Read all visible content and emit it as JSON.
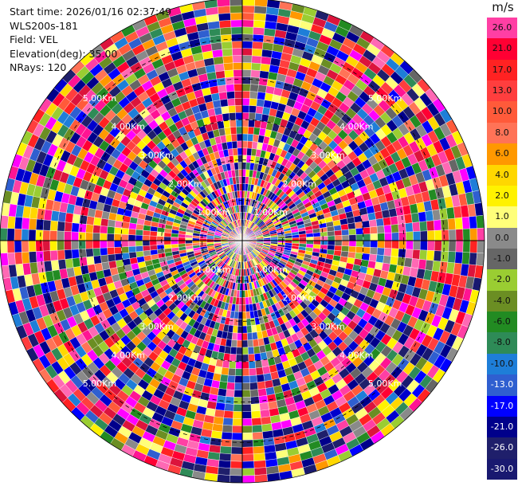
{
  "header": {
    "start_time": "Start time: 2026/01/16 02:37:49",
    "instrument": "WLS200s-181",
    "field": "Field: VEL",
    "elevation": "Elevation(deg): 35.00",
    "nrays": "NRays: 120"
  },
  "colorbar": {
    "unit": "m/s",
    "levels": [
      {
        "label": "26.0",
        "color": "#ff3fa4"
      },
      {
        "label": "21.0",
        "color": "#ff0033"
      },
      {
        "label": "17.0",
        "color": "#ff2222"
      },
      {
        "label": "13.0",
        "color": "#ff3e3e"
      },
      {
        "label": "10.0",
        "color": "#ff5a3a"
      },
      {
        "label": "8.0",
        "color": "#ff7357"
      },
      {
        "label": "6.0",
        "color": "#ff9800"
      },
      {
        "label": "4.0",
        "color": "#ffd700"
      },
      {
        "label": "2.0",
        "color": "#fff200"
      },
      {
        "label": "1.0",
        "color": "#ffff7a"
      },
      {
        "label": "0.0",
        "color": "#8a8a8a"
      },
      {
        "label": "-1.0",
        "color": "#666666"
      },
      {
        "label": "-2.0",
        "color": "#9acd32"
      },
      {
        "label": "-4.0",
        "color": "#6b8e23"
      },
      {
        "label": "-6.0",
        "color": "#228b22"
      },
      {
        "label": "-8.0",
        "color": "#2e8b57"
      },
      {
        "label": "-10.0",
        "color": "#1e7ed8"
      },
      {
        "label": "-13.0",
        "color": "#2f5fd0"
      },
      {
        "label": "-17.0",
        "color": "#0000ff"
      },
      {
        "label": "-21.0",
        "color": "#00008b"
      },
      {
        "label": "-26.0",
        "color": "#1f1f6b"
      },
      {
        "label": "-30.0",
        "color": "#191970"
      }
    ]
  },
  "range_rings": [
    {
      "label": "1.00Km"
    },
    {
      "label": "2.00Km"
    },
    {
      "label": "3.00Km"
    },
    {
      "label": "4.00Km"
    },
    {
      "label": "5.00Km"
    }
  ],
  "chart_data": {
    "type": "heatmap",
    "title": "",
    "xlabel": "",
    "ylabel": "",
    "field": "VEL",
    "units": "m/s",
    "elevation_deg": 35.0,
    "n_rays": 120,
    "range_ring_km": [
      1,
      2,
      3,
      4,
      5
    ],
    "color_levels": [
      26.0,
      21.0,
      17.0,
      13.0,
      10.0,
      8.0,
      6.0,
      4.0,
      2.0,
      1.0,
      0.0,
      -1.0,
      -2.0,
      -4.0,
      -6.0,
      -8.0,
      -10.0,
      -13.0,
      -17.0,
      -21.0,
      -26.0,
      -30.0
    ]
  }
}
